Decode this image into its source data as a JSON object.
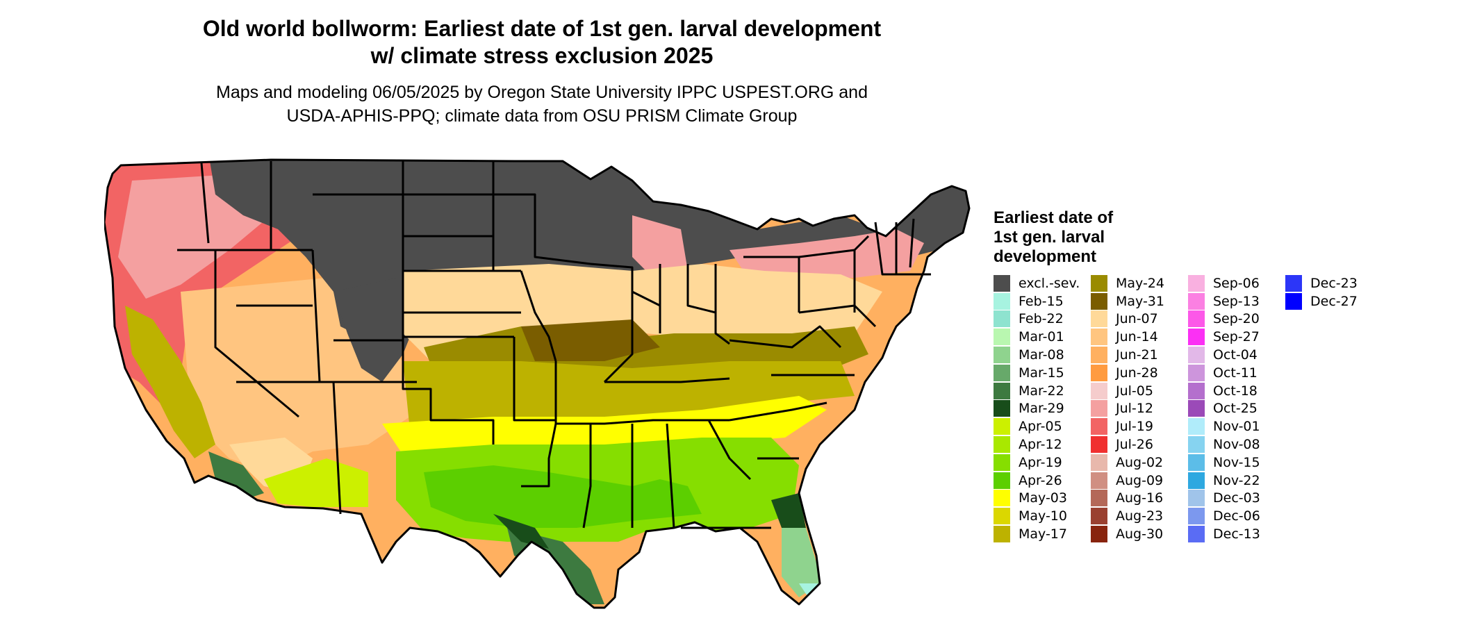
{
  "title_line1": "Old world bollworm: Earliest date of 1st gen. larval development",
  "title_line2": "w/ climate stress exclusion 2025",
  "subtitle_line1": "Maps and modeling 06/05/2025 by Oregon State University IPPC USPEST.ORG and",
  "subtitle_line2": "USDA-APHIS-PPQ; climate data from OSU PRISM Climate Group",
  "legend": {
    "title": "Earliest date of 1st gen. larval development",
    "items": [
      {
        "label": "excl.-sev.",
        "color": "#4d4d4d"
      },
      {
        "label": "Feb-15",
        "color": "#a7f3e0"
      },
      {
        "label": "Feb-22",
        "color": "#8ee3cf"
      },
      {
        "label": "Mar-01",
        "color": "#b9f7b0"
      },
      {
        "label": "Mar-08",
        "color": "#8fd38e"
      },
      {
        "label": "Mar-15",
        "color": "#67a96a"
      },
      {
        "label": "Mar-22",
        "color": "#3d7a40"
      },
      {
        "label": "Mar-29",
        "color": "#184d1a"
      },
      {
        "label": "Apr-05",
        "color": "#ccf000"
      },
      {
        "label": "Apr-12",
        "color": "#a9e800"
      },
      {
        "label": "Apr-19",
        "color": "#86de00"
      },
      {
        "label": "Apr-26",
        "color": "#5ccf00"
      },
      {
        "label": "May-03",
        "color": "#ffff00"
      },
      {
        "label": "May-10",
        "color": "#dbd700"
      },
      {
        "label": "May-17",
        "color": "#bdb200"
      },
      {
        "label": "May-24",
        "color": "#9a8b00"
      },
      {
        "label": "May-31",
        "color": "#7a5d00"
      },
      {
        "label": "Jun-07",
        "color": "#ffd999"
      },
      {
        "label": "Jun-14",
        "color": "#ffc580"
      },
      {
        "label": "Jun-21",
        "color": "#ffb060"
      },
      {
        "label": "Jun-28",
        "color": "#ff9b40"
      },
      {
        "label": "Jul-05",
        "color": "#f5cccc"
      },
      {
        "label": "Jul-12",
        "color": "#f4a0a0"
      },
      {
        "label": "Jul-19",
        "color": "#f26464"
      },
      {
        "label": "Jul-26",
        "color": "#f03030"
      },
      {
        "label": "Aug-02",
        "color": "#e8b8ac"
      },
      {
        "label": "Aug-09",
        "color": "#d08f82"
      },
      {
        "label": "Aug-16",
        "color": "#b46858"
      },
      {
        "label": "Aug-23",
        "color": "#9a4030"
      },
      {
        "label": "Aug-30",
        "color": "#88240e"
      },
      {
        "label": "Sep-06",
        "color": "#f9b0e0"
      },
      {
        "label": "Sep-13",
        "color": "#fb80e2"
      },
      {
        "label": "Sep-20",
        "color": "#fc58e8"
      },
      {
        "label": "Sep-27",
        "color": "#fb30f4"
      },
      {
        "label": "Oct-04",
        "color": "#e2b8e8"
      },
      {
        "label": "Oct-11",
        "color": "#cd95dc"
      },
      {
        "label": "Oct-18",
        "color": "#b46fcd"
      },
      {
        "label": "Oct-25",
        "color": "#9b4ab8"
      },
      {
        "label": "Nov-01",
        "color": "#b0ecfa"
      },
      {
        "label": "Nov-08",
        "color": "#86d3f0"
      },
      {
        "label": "Nov-15",
        "color": "#5cbde8"
      },
      {
        "label": "Nov-22",
        "color": "#2ea8e0"
      },
      {
        "label": "Dec-03",
        "color": "#a0c4ea"
      },
      {
        "label": "Dec-06",
        "color": "#7c98ee"
      },
      {
        "label": "Dec-13",
        "color": "#5a6cf4"
      },
      {
        "label": "Dec-23",
        "color": "#2c36f8"
      },
      {
        "label": "Dec-27",
        "color": "#0000ff"
      }
    ]
  }
}
